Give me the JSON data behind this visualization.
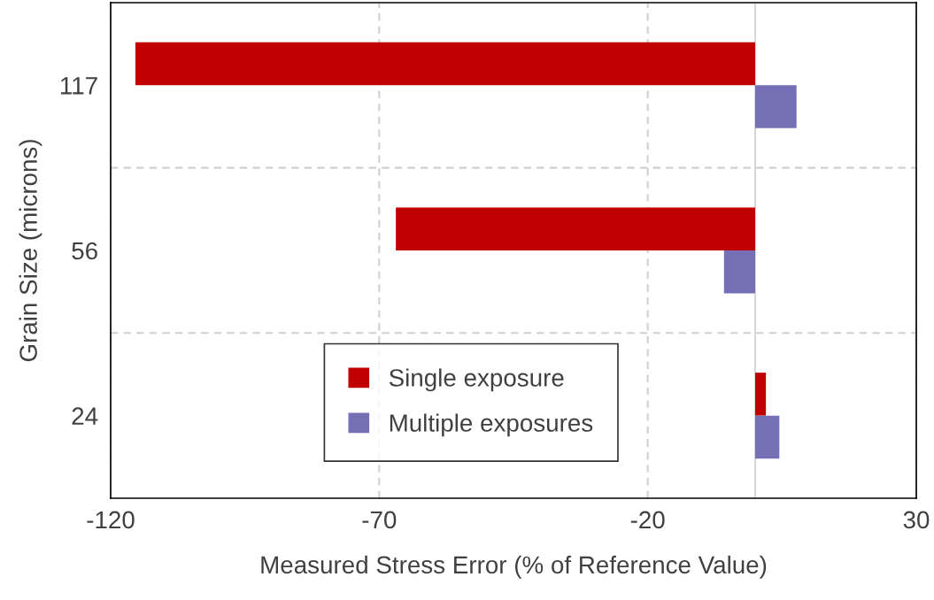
{
  "chart_data": {
    "type": "bar",
    "orientation": "horizontal",
    "xlabel": "Measured Stress Error (% of Reference Value)",
    "ylabel": "Grain Size (microns)",
    "categories": [
      "117",
      "56",
      "24"
    ],
    "series": [
      {
        "name": "Single exposure",
        "color": "#c00000",
        "values": [
          -115.4,
          -66.9,
          2.0
        ]
      },
      {
        "name": "Multiple exposures",
        "color": "#7570b6",
        "values": [
          7.7,
          -5.8,
          4.5
        ]
      }
    ],
    "xlim": [
      -120,
      30
    ],
    "xticks": [
      -120,
      -70,
      -20,
      30
    ],
    "grid": true,
    "legend": "bottom"
  }
}
